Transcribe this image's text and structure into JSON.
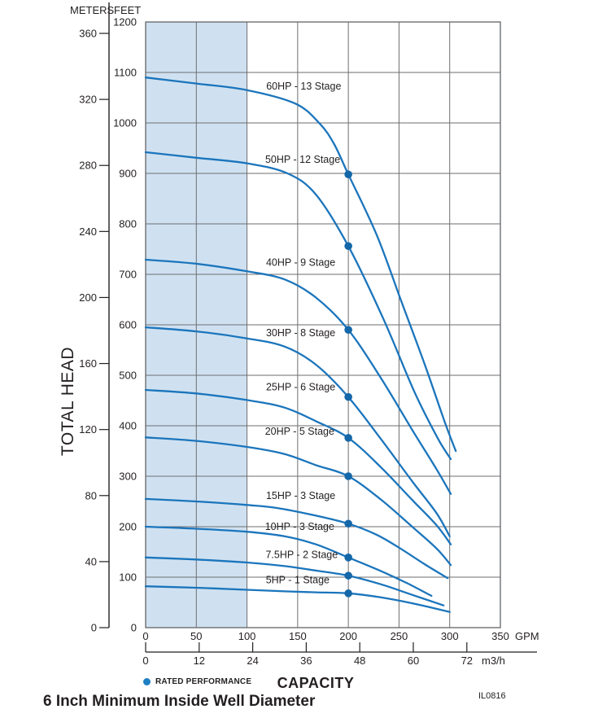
{
  "header": {
    "meters": "METERS",
    "feet": "FEET"
  },
  "axis_titles": {
    "y_label": "TOTAL HEAD",
    "x_label": "CAPACITY"
  },
  "legend": {
    "label": "RATED PERFORMANCE"
  },
  "footer": {
    "title": "6 Inch Minimum Inside Well Diameter",
    "code": "IL0816"
  },
  "colors": {
    "curve": "#1b75bc",
    "rated_dot": "#1467a8",
    "legend_dot": "#1e80c4",
    "shade": "#cfe1f1",
    "grid": "#6d6e71",
    "axis": "#231f20",
    "text": "#231f20"
  },
  "chart_data": {
    "type": "line",
    "title": "6 Inch Minimum Inside Well Diameter",
    "xlabel": "CAPACITY",
    "ylabel": "TOTAL HEAD",
    "x_axis": {
      "primary_unit": "GPM",
      "primary_ticks": [
        0,
        50,
        100,
        150,
        200,
        250,
        300,
        350
      ],
      "secondary_unit": "m3/h",
      "secondary_ticks": [
        0,
        12,
        24,
        36,
        48,
        60,
        72
      ],
      "range_gpm": [
        0,
        350
      ]
    },
    "y_axis": {
      "left_unit": "METERS",
      "left_ticks": [
        0,
        40,
        80,
        120,
        160,
        200,
        240,
        280,
        320,
        360
      ],
      "right_unit": "FEET",
      "right_ticks": [
        0,
        100,
        200,
        300,
        400,
        500,
        600,
        700,
        800,
        900,
        1000,
        1100,
        1200
      ],
      "range_feet": [
        0,
        1200
      ]
    },
    "shaded_region_gpm": [
      0,
      100
    ],
    "grid": true,
    "rated_performance_gpm": 200,
    "series": [
      {
        "name": "60HP - 13 Stage",
        "label_pos": [
          156,
          1073
        ],
        "rated_point": [
          200,
          898
        ],
        "points": [
          [
            0,
            1090
          ],
          [
            50,
            1078
          ],
          [
            100,
            1065
          ],
          [
            148,
            1038
          ],
          [
            172,
            998
          ],
          [
            186,
            958
          ],
          [
            200,
            898
          ],
          [
            228,
            778
          ],
          [
            252,
            648
          ],
          [
            276,
            518
          ],
          [
            295,
            408
          ],
          [
            306,
            350
          ]
        ]
      },
      {
        "name": "50HP - 12 Stage",
        "label_pos": [
          155,
          928
        ],
        "rated_point": [
          200,
          756
        ],
        "points": [
          [
            0,
            942
          ],
          [
            50,
            931
          ],
          [
            100,
            920
          ],
          [
            140,
            900
          ],
          [
            168,
            858
          ],
          [
            200,
            756
          ],
          [
            235,
            610
          ],
          [
            265,
            468
          ],
          [
            288,
            376
          ],
          [
            301,
            334
          ]
        ]
      },
      {
        "name": "40HP - 9 Stage",
        "label_pos": [
          153,
          724
        ],
        "rated_point": [
          200,
          590
        ],
        "points": [
          [
            0,
            729
          ],
          [
            50,
            721
          ],
          [
            100,
            706
          ],
          [
            137,
            690
          ],
          [
            168,
            654
          ],
          [
            200,
            590
          ],
          [
            232,
            495
          ],
          [
            263,
            392
          ],
          [
            287,
            314
          ],
          [
            301,
            265
          ]
        ]
      },
      {
        "name": "30HP - 8 Stage",
        "label_pos": [
          153,
          584
        ],
        "rated_point": [
          200,
          457
        ],
        "points": [
          [
            0,
            595
          ],
          [
            50,
            587
          ],
          [
            100,
            573
          ],
          [
            137,
            557
          ],
          [
            168,
            521
          ],
          [
            200,
            457
          ],
          [
            232,
            374
          ],
          [
            263,
            290
          ],
          [
            287,
            227
          ],
          [
            300,
            181
          ]
        ]
      },
      {
        "name": "25HP - 6 Stage",
        "label_pos": [
          153,
          477
        ],
        "rated_point": [
          200,
          376
        ],
        "points": [
          [
            0,
            471
          ],
          [
            50,
            464
          ],
          [
            100,
            451
          ],
          [
            137,
            436
          ],
          [
            168,
            409
          ],
          [
            200,
            376
          ],
          [
            232,
            318
          ],
          [
            263,
            253
          ],
          [
            287,
            203
          ],
          [
            301,
            165
          ]
        ]
      },
      {
        "name": "20HP - 5 Stage",
        "label_pos": [
          152,
          389
        ],
        "rated_point": [
          200,
          300
        ],
        "points": [
          [
            0,
            377
          ],
          [
            50,
            370
          ],
          [
            100,
            358
          ],
          [
            137,
            344
          ],
          [
            168,
            322
          ],
          [
            200,
            300
          ],
          [
            232,
            254
          ],
          [
            263,
            200
          ],
          [
            287,
            157
          ],
          [
            301,
            124
          ]
        ]
      },
      {
        "name": "15HP - 3 Stage",
        "label_pos": [
          153,
          262
        ],
        "rated_point": [
          200,
          206
        ],
        "points": [
          [
            0,
            255
          ],
          [
            50,
            250
          ],
          [
            100,
            243
          ],
          [
            130,
            237
          ],
          [
            168,
            222
          ],
          [
            200,
            206
          ],
          [
            228,
            184
          ],
          [
            252,
            156
          ],
          [
            275,
            126
          ],
          [
            298,
            98
          ]
        ]
      },
      {
        "name": "10HP - 3 Stage",
        "label_pos": [
          152,
          200
        ],
        "rated_point": [
          200,
          139
        ],
        "points": [
          [
            0,
            200
          ],
          [
            50,
            196
          ],
          [
            100,
            190
          ],
          [
            137,
            181
          ],
          [
            168,
            165
          ],
          [
            200,
            139
          ],
          [
            230,
            114
          ],
          [
            258,
            88
          ],
          [
            282,
            63
          ]
        ]
      },
      {
        "name": "7.5HP - 2 Stage",
        "label_pos": [
          154,
          145
        ],
        "rated_point": [
          200,
          103
        ],
        "points": [
          [
            0,
            139
          ],
          [
            50,
            135
          ],
          [
            100,
            129
          ],
          [
            137,
            122
          ],
          [
            168,
            113
          ],
          [
            200,
            103
          ],
          [
            232,
            86
          ],
          [
            263,
            65
          ],
          [
            294,
            44
          ]
        ]
      },
      {
        "name": "5HP - 1 Stage",
        "label_pos": [
          150,
          95
        ],
        "rated_point": [
          200,
          68
        ],
        "points": [
          [
            0,
            82
          ],
          [
            50,
            79
          ],
          [
            100,
            75
          ],
          [
            137,
            72
          ],
          [
            168,
            70
          ],
          [
            200,
            68
          ],
          [
            232,
            60
          ],
          [
            266,
            47
          ],
          [
            300,
            31
          ]
        ]
      }
    ]
  }
}
